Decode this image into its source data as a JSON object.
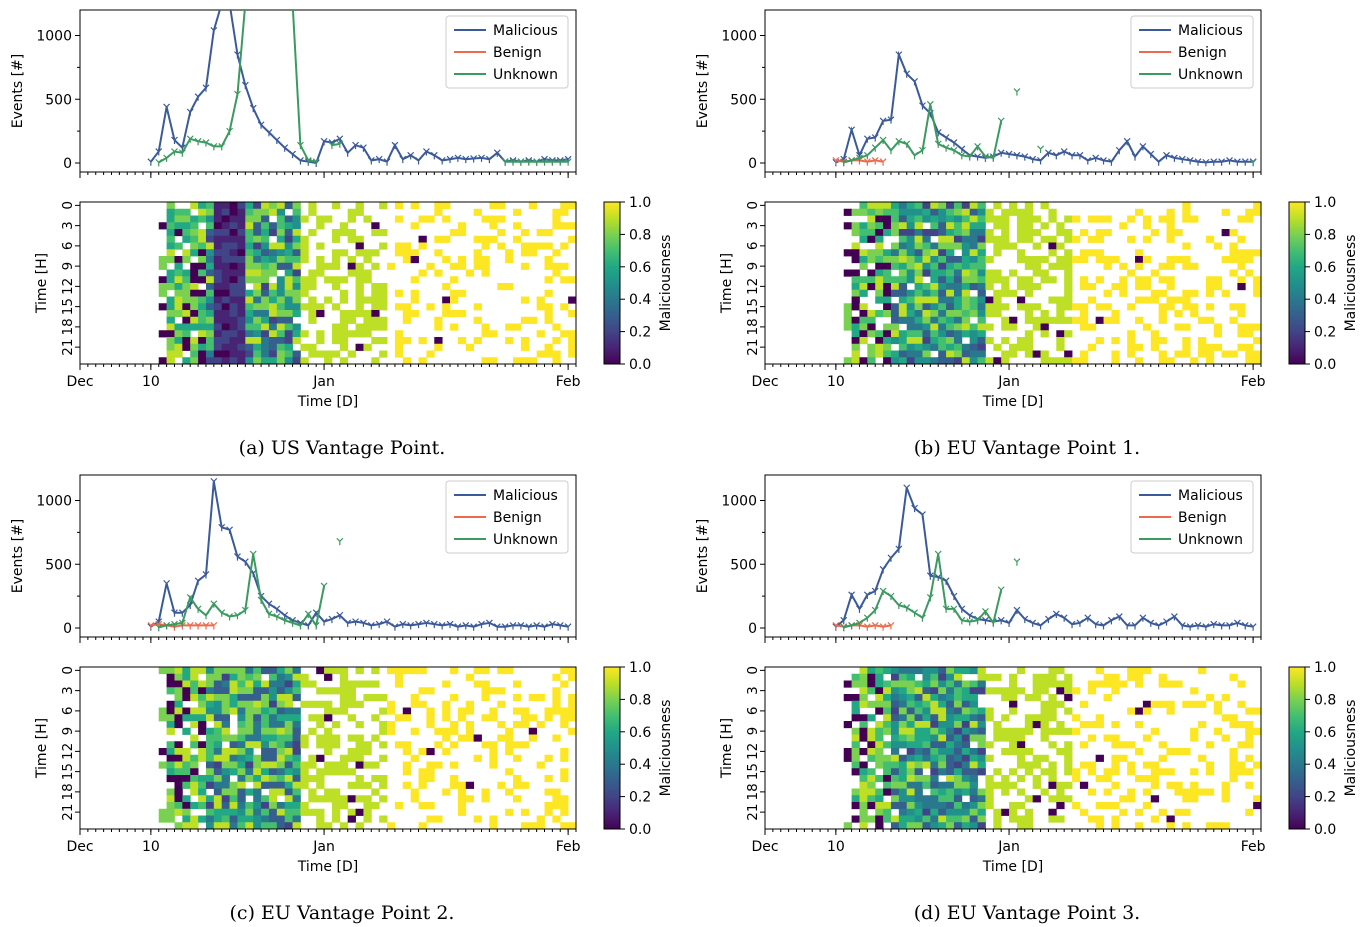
{
  "colors": {
    "malicious": "#3b5a9a",
    "benign": "#ee6a4d",
    "unknown": "#3a9a60",
    "viridis": [
      "#440154",
      "#482475",
      "#414487",
      "#355f8d",
      "#2a788e",
      "#21918c",
      "#22a884",
      "#44bf70",
      "#7ad151",
      "#bddf26",
      "#fde725"
    ]
  },
  "shared": {
    "line_ylabel": "Events [#]",
    "line_yticks": [
      0,
      500,
      1000
    ],
    "heat_ylabel": "Time [H]",
    "heat_yticks": [
      "0",
      "3",
      "6",
      "9",
      "12",
      "15",
      "18",
      "21"
    ],
    "xticks": [
      "Dec",
      "10",
      "Jan",
      "Feb"
    ],
    "xlabel": "Time [D]",
    "legend": [
      "Malicious",
      "Benign",
      "Unknown"
    ],
    "cbar_label": "Maliciousness",
    "cbar_ticks": [
      "0.0",
      "0.2",
      "0.4",
      "0.6",
      "0.8",
      "1.0"
    ]
  },
  "chart_data": [
    {
      "type": "line",
      "caption": "(a) US Vantage Point.",
      "ylim": [
        0,
        1200
      ],
      "x_days_from_dec1": "9..62",
      "series": [
        {
          "name": "Malicious",
          "values": [
            10,
            90,
            440,
            180,
            120,
            400,
            520,
            590,
            1040,
            1250,
            1250,
            850,
            610,
            430,
            300,
            240,
            180,
            120,
            70,
            20,
            10,
            0,
            170,
            160,
            190,
            80,
            140,
            120,
            20,
            30,
            10,
            140,
            30,
            60,
            20,
            90,
            60,
            20,
            30,
            40,
            30,
            35,
            40,
            30,
            80,
            10,
            20,
            10,
            20,
            10,
            30,
            20,
            20,
            30
          ]
        },
        {
          "name": "Unknown",
          "values": [
            null,
            5,
            40,
            90,
            80,
            190,
            170,
            160,
            130,
            130,
            250,
            540,
            1250,
            1250,
            1250,
            1250,
            1250,
            1250,
            1250,
            140,
            20,
            10,
            null,
            140,
            150,
            null,
            null,
            null,
            null,
            null,
            null,
            null,
            null,
            null,
            null,
            null,
            null,
            null,
            null,
            null,
            null,
            null,
            null,
            null,
            null,
            10,
            10,
            10,
            10,
            10,
            10,
            10,
            10,
            10
          ]
        }
      ],
      "heatmap_profile": {
        "start_day": 11,
        "dark_band_days": [
          17,
          20
        ]
      }
    },
    {
      "type": "line",
      "caption": "(b) EU Vantage Point 1.",
      "ylim": [
        0,
        1200
      ],
      "series": [
        {
          "name": "Malicious",
          "values": [
            5,
            30,
            260,
            60,
            190,
            200,
            330,
            340,
            850,
            700,
            640,
            450,
            390,
            240,
            200,
            160,
            110,
            60,
            50,
            40,
            50,
            80,
            70,
            60,
            50,
            30,
            20,
            80,
            60,
            90,
            60,
            60,
            20,
            40,
            20,
            10,
            100,
            170,
            50,
            130,
            70,
            10,
            60,
            40,
            30,
            20,
            10,
            5,
            10,
            10,
            20,
            10,
            10,
            10
          ]
        },
        {
          "name": "Benign",
          "values": [
            20,
            10,
            20,
            20,
            10,
            20,
            10,
            null,
            null,
            null,
            null,
            null,
            null,
            null,
            null,
            null,
            null,
            null,
            null,
            null,
            null,
            null,
            null,
            null,
            null,
            null,
            null,
            null,
            null,
            null,
            null,
            null,
            null,
            null,
            null,
            null,
            null,
            null,
            null,
            null,
            null,
            null,
            null,
            null,
            null,
            null,
            null,
            null,
            null,
            null,
            null,
            null,
            null,
            null
          ]
        },
        {
          "name": "Unknown",
          "values": [
            null,
            5,
            20,
            40,
            60,
            120,
            180,
            100,
            170,
            150,
            60,
            100,
            460,
            150,
            120,
            100,
            60,
            50,
            130,
            50,
            40,
            330,
            null,
            560,
            null,
            null,
            110,
            null,
            null,
            null,
            null,
            null,
            null,
            null,
            null,
            null,
            null,
            null,
            null,
            null,
            null,
            null,
            null,
            null,
            null,
            null,
            null,
            null,
            null,
            null,
            null,
            null,
            null,
            5
          ]
        }
      ],
      "heatmap_profile": {
        "start_day": 11,
        "dark_band_days": null
      }
    },
    {
      "type": "line",
      "caption": "(c) EU Vantage Point 2.",
      "ylim": [
        0,
        1200
      ],
      "series": [
        {
          "name": "Malicious",
          "values": [
            10,
            50,
            350,
            120,
            120,
            180,
            370,
            420,
            1150,
            790,
            770,
            560,
            520,
            430,
            250,
            190,
            150,
            100,
            60,
            40,
            20,
            120,
            50,
            70,
            100,
            40,
            50,
            40,
            20,
            30,
            50,
            10,
            30,
            20,
            30,
            40,
            30,
            20,
            30,
            10,
            20,
            10,
            30,
            40,
            10,
            10,
            20,
            20,
            10,
            20,
            10,
            30,
            20,
            10
          ]
        },
        {
          "name": "Benign",
          "values": [
            20,
            30,
            20,
            10,
            20,
            20,
            20,
            20,
            20,
            null,
            null,
            null,
            null,
            null,
            null,
            null,
            null,
            null,
            null,
            null,
            null,
            null,
            null,
            null,
            null,
            null,
            null,
            null,
            null,
            null,
            null,
            null,
            null,
            null,
            null,
            null,
            null,
            null,
            null,
            null,
            null,
            null,
            null,
            null,
            null,
            null,
            null,
            null,
            null,
            null,
            null,
            null,
            null,
            null
          ]
        },
        {
          "name": "Unknown",
          "values": [
            null,
            5,
            20,
            30,
            40,
            240,
            150,
            100,
            190,
            120,
            90,
            100,
            140,
            580,
            220,
            110,
            90,
            60,
            40,
            20,
            110,
            20,
            330,
            null,
            680,
            null,
            null,
            null,
            null,
            null,
            null,
            null,
            null,
            null,
            null,
            null,
            null,
            null,
            null,
            null,
            null,
            null,
            null,
            null,
            null,
            null,
            null,
            null,
            null,
            null,
            null,
            null,
            null,
            null
          ]
        }
      ],
      "heatmap_profile": {
        "start_day": 11,
        "dark_band_days": null
      }
    },
    {
      "type": "line",
      "caption": "(d) EU Vantage Point 3.",
      "ylim": [
        0,
        1200
      ],
      "series": [
        {
          "name": "Malicious",
          "values": [
            10,
            60,
            260,
            150,
            260,
            290,
            460,
            550,
            620,
            1100,
            940,
            890,
            410,
            400,
            370,
            250,
            150,
            100,
            70,
            60,
            50,
            60,
            40,
            140,
            70,
            40,
            20,
            70,
            110,
            80,
            30,
            40,
            80,
            30,
            20,
            60,
            90,
            20,
            20,
            80,
            40,
            20,
            50,
            90,
            20,
            10,
            20,
            10,
            30,
            20,
            20,
            40,
            20,
            10
          ]
        },
        {
          "name": "Benign",
          "values": [
            20,
            10,
            20,
            20,
            10,
            20,
            10,
            20,
            null,
            null,
            null,
            null,
            null,
            null,
            null,
            null,
            null,
            null,
            null,
            null,
            null,
            null,
            null,
            null,
            null,
            null,
            null,
            null,
            null,
            null,
            null,
            null,
            null,
            null,
            null,
            null,
            null,
            null,
            null,
            null,
            null,
            null,
            null,
            null,
            null,
            null,
            null,
            null,
            null,
            null,
            null,
            null,
            null,
            null
          ]
        },
        {
          "name": "Unknown",
          "values": [
            null,
            5,
            20,
            40,
            80,
            140,
            290,
            250,
            180,
            160,
            120,
            80,
            240,
            580,
            150,
            150,
            60,
            50,
            60,
            130,
            40,
            300,
            null,
            520,
            null,
            null,
            null,
            null,
            null,
            null,
            null,
            null,
            null,
            null,
            null,
            null,
            null,
            null,
            null,
            null,
            null,
            null,
            null,
            null,
            null,
            null,
            null,
            null,
            null,
            null,
            null,
            null,
            null,
            null
          ]
        }
      ],
      "heatmap_profile": {
        "start_day": 11,
        "dark_band_days": null
      }
    }
  ]
}
